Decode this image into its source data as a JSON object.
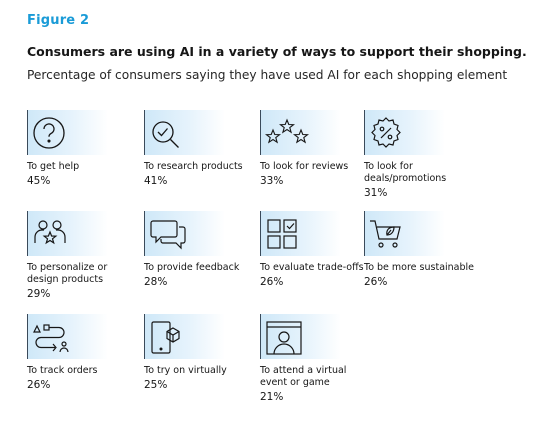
{
  "figure_label": "Figure 2",
  "title": "Consumers are using AI in a variety of ways to support their shopping.",
  "subtitle": "Percentage of consumers saying they have used AI for each shopping element",
  "items": [
    {
      "label": "To get help",
      "value": "45%",
      "icon": "question-icon"
    },
    {
      "label": "To research products",
      "value": "41%",
      "icon": "magnifier-check-icon"
    },
    {
      "label": "To look for reviews",
      "value": "33%",
      "icon": "stars-icon"
    },
    {
      "label": "To look for deals/promotions",
      "value": "31%",
      "icon": "discount-badge-icon"
    },
    {
      "label": "To personalize or design products",
      "value": "29%",
      "icon": "people-star-icon"
    },
    {
      "label": "To provide feedback",
      "value": "28%",
      "icon": "chat-bubbles-icon"
    },
    {
      "label": "To evaluate trade-offs",
      "value": "26%",
      "icon": "grid-check-icon"
    },
    {
      "label": "To be more sustainable",
      "value": "26%",
      "icon": "cart-leaf-icon"
    },
    {
      "label": "To track orders",
      "value": "26%",
      "icon": "route-icon"
    },
    {
      "label": "To try on virtually",
      "value": "25%",
      "icon": "phone-cube-icon"
    },
    {
      "label": "To attend a virtual event or game",
      "value": "21%",
      "icon": "browser-user-icon"
    }
  ],
  "colors": {
    "accent": "#1a9bd7",
    "tile_gradient": "#cfe8f8"
  }
}
